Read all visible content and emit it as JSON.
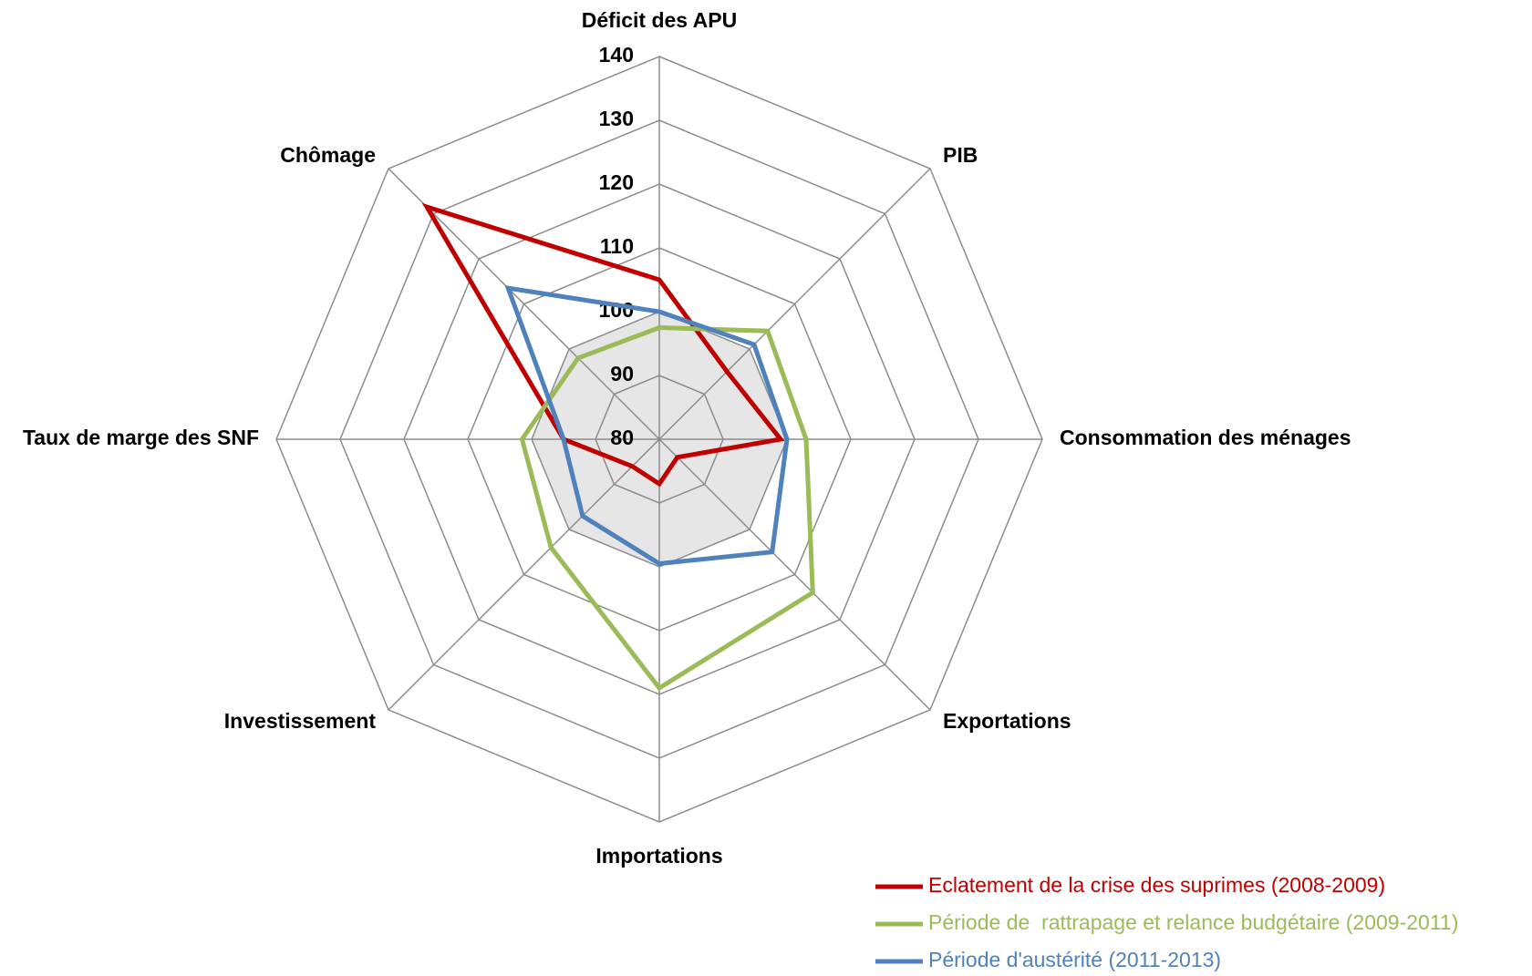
{
  "chart_data": {
    "type": "radar",
    "categories": [
      "Déficit des APU",
      "PIB",
      "Consommation des ménages",
      "Exportations",
      "Importations",
      "Investissement",
      "Taux de marge des SNF",
      "Chômage"
    ],
    "series": [
      {
        "name": "Eclatement de la crise des suprimes (2008-2009)",
        "color": "#c00000",
        "values": [
          105,
          95,
          99,
          84,
          87,
          86,
          95,
          131.5
        ]
      },
      {
        "name": "Période de  rattrapage et relance budgétaire (2009-2011)",
        "color": "#9bbb59",
        "values": [
          97.5,
          104,
          103,
          114,
          119,
          104,
          101.5,
          98
        ]
      },
      {
        "name": "Période d'austérité (2011-2013)",
        "color": "#4f81bd",
        "values": [
          100,
          101,
          100,
          105,
          99.5,
          97,
          95,
          113.5
        ]
      }
    ],
    "reference": 100,
    "ylim": [
      80,
      140
    ],
    "yticks": [
      80,
      90,
      100,
      110,
      120,
      130,
      140
    ],
    "grid": true
  }
}
